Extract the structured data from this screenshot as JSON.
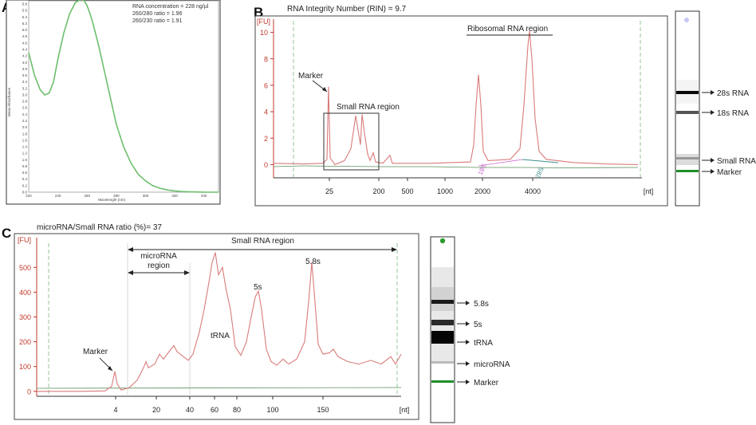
{
  "panels": {
    "a": "A",
    "b": "B",
    "c": "C"
  },
  "colors": {
    "spectrum": "#6cbf6c",
    "trace": "#d97b7b",
    "baseline": "#5a8f5a",
    "axis_red": "#c0392b",
    "marker_band": "#1f8f2a",
    "gel_dot_b": "#c9c7f2",
    "gel_dot_c": "#2a9d2a",
    "window": "#333333"
  },
  "chart_data": [
    {
      "type": "line",
      "panel": "A",
      "xlabel": "Wavelength (nm)",
      "ylabel": "Mean Absorbance",
      "xlim": [
        220,
        350
      ],
      "ylim": [
        0,
        5.9
      ],
      "x_ticks": [
        "220",
        "240",
        "260",
        "280",
        "300",
        "320",
        "340"
      ],
      "y_ticks": [
        "0.0",
        "0.2",
        "0.4",
        "0.6",
        "0.8",
        "1.0",
        "1.2",
        "1.4",
        "1.6",
        "1.8",
        "2.0",
        "2.2",
        "2.4",
        "2.6",
        "2.8",
        "3.0",
        "3.2",
        "3.4",
        "3.6",
        "3.8",
        "4.0",
        "4.2",
        "4.4",
        "4.6",
        "4.8",
        "5.0",
        "5.2",
        "5.4",
        "5.6",
        "5.8"
      ],
      "annotations": [
        "RNA concentration = 228 ng/µl",
        "260/280 ratio = 1.96",
        "260/230 ratio = 1.91"
      ],
      "x": [
        220,
        224,
        228,
        231,
        234,
        237,
        240,
        244,
        248,
        252,
        256,
        258,
        260,
        262,
        264,
        268,
        272,
        276,
        280,
        285,
        290,
        295,
        300,
        305,
        310,
        315,
        320,
        325,
        330,
        340,
        350
      ],
      "y": [
        4.3,
        3.6,
        3.15,
        3.0,
        3.05,
        3.4,
        4.1,
        4.9,
        5.5,
        5.85,
        5.95,
        5.9,
        5.75,
        5.5,
        5.2,
        4.5,
        3.7,
        2.9,
        2.1,
        1.4,
        0.9,
        0.55,
        0.35,
        0.2,
        0.12,
        0.07,
        0.04,
        0.02,
        0.01,
        0.0,
        0.0
      ]
    },
    {
      "type": "line",
      "panel": "B",
      "title": "RNA Integrity Number (RIN) = 9.7",
      "ylabel": "[FU]",
      "xlabel": "[nt]",
      "ylim": [
        -1,
        11
      ],
      "y_ticks": [
        "0",
        "2",
        "4",
        "6",
        "8",
        "10"
      ],
      "x_ticks": [
        "25",
        "200",
        "500",
        "1000",
        "2000",
        "4000"
      ],
      "annotations": [
        "Marker",
        "Small RNA region",
        "Ribosomal RNA region",
        "18S",
        "28S"
      ],
      "peaks": [
        {
          "label": "Marker",
          "position": "25",
          "fu": 5.9
        },
        {
          "label": "Small RNA peak 1",
          "position": "~110",
          "fu": 3.7
        },
        {
          "label": "Small RNA peak 2",
          "position": "~140",
          "fu": 3.8
        },
        {
          "label": "18S",
          "position": "1900",
          "fu": 6.8
        },
        {
          "label": "28S",
          "position": "4000",
          "fu": 10.1
        }
      ]
    },
    {
      "type": "line",
      "panel": "C",
      "title": "microRNA/Small RNA ratio (%)= 37",
      "ylabel": "[FU]",
      "xlabel": "[nt]",
      "ylim": [
        -20,
        620
      ],
      "y_ticks": [
        "0",
        "100",
        "200",
        "300",
        "400",
        "500"
      ],
      "x_ticks": [
        "4",
        "20",
        "40",
        "60",
        "80",
        "100",
        "150"
      ],
      "annotations": [
        "Marker",
        "tRNA",
        "5s",
        "5.8s",
        "microRNA region",
        "Small RNA region"
      ],
      "peaks": [
        {
          "label": "Marker",
          "position": "4",
          "fu": 80
        },
        {
          "label": "tRNA",
          "position": "~65",
          "fu": 560
        },
        {
          "label": "5s",
          "position": "~90",
          "fu": 405
        },
        {
          "label": "5.8s",
          "position": "~140",
          "fu": 520
        }
      ]
    }
  ],
  "gel_b": {
    "labels": [
      "28s RNA",
      "18s RNA",
      "Small RNA",
      "Marker"
    ]
  },
  "gel_c": {
    "labels": [
      "5.8s",
      "5s",
      "tRNA",
      "microRNA",
      "Marker"
    ]
  }
}
